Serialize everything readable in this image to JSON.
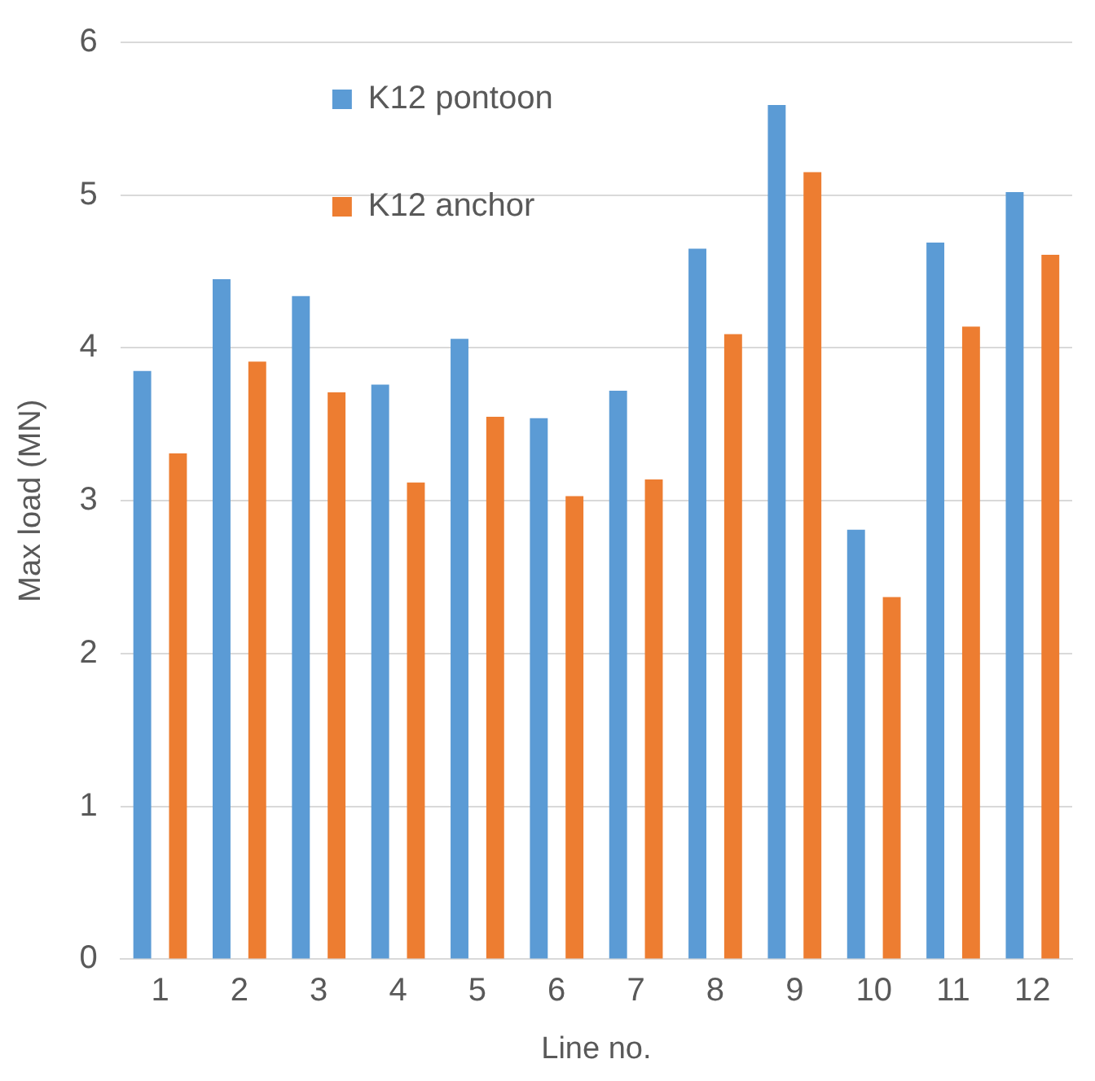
{
  "chart_data": {
    "type": "bar",
    "xlabel": "Line no.",
    "ylabel": "Max load (MN)",
    "categories": [
      "1",
      "2",
      "3",
      "4",
      "5",
      "6",
      "7",
      "8",
      "9",
      "10",
      "11",
      "12"
    ],
    "series": [
      {
        "name": "K12 pontoon",
        "color": "#5b9bd5",
        "values": [
          3.85,
          4.45,
          4.34,
          3.76,
          4.06,
          3.54,
          3.72,
          4.65,
          5.59,
          2.81,
          4.69,
          5.02
        ]
      },
      {
        "name": "K12 anchor",
        "color": "#ed7d31",
        "values": [
          3.31,
          3.91,
          3.71,
          3.12,
          3.55,
          3.03,
          3.14,
          4.09,
          5.15,
          2.37,
          4.14,
          4.61
        ]
      }
    ],
    "ylim": [
      0,
      6
    ],
    "yticks": [
      0,
      1,
      2,
      3,
      4,
      5,
      6
    ],
    "grid": "y",
    "legend": "top left"
  }
}
